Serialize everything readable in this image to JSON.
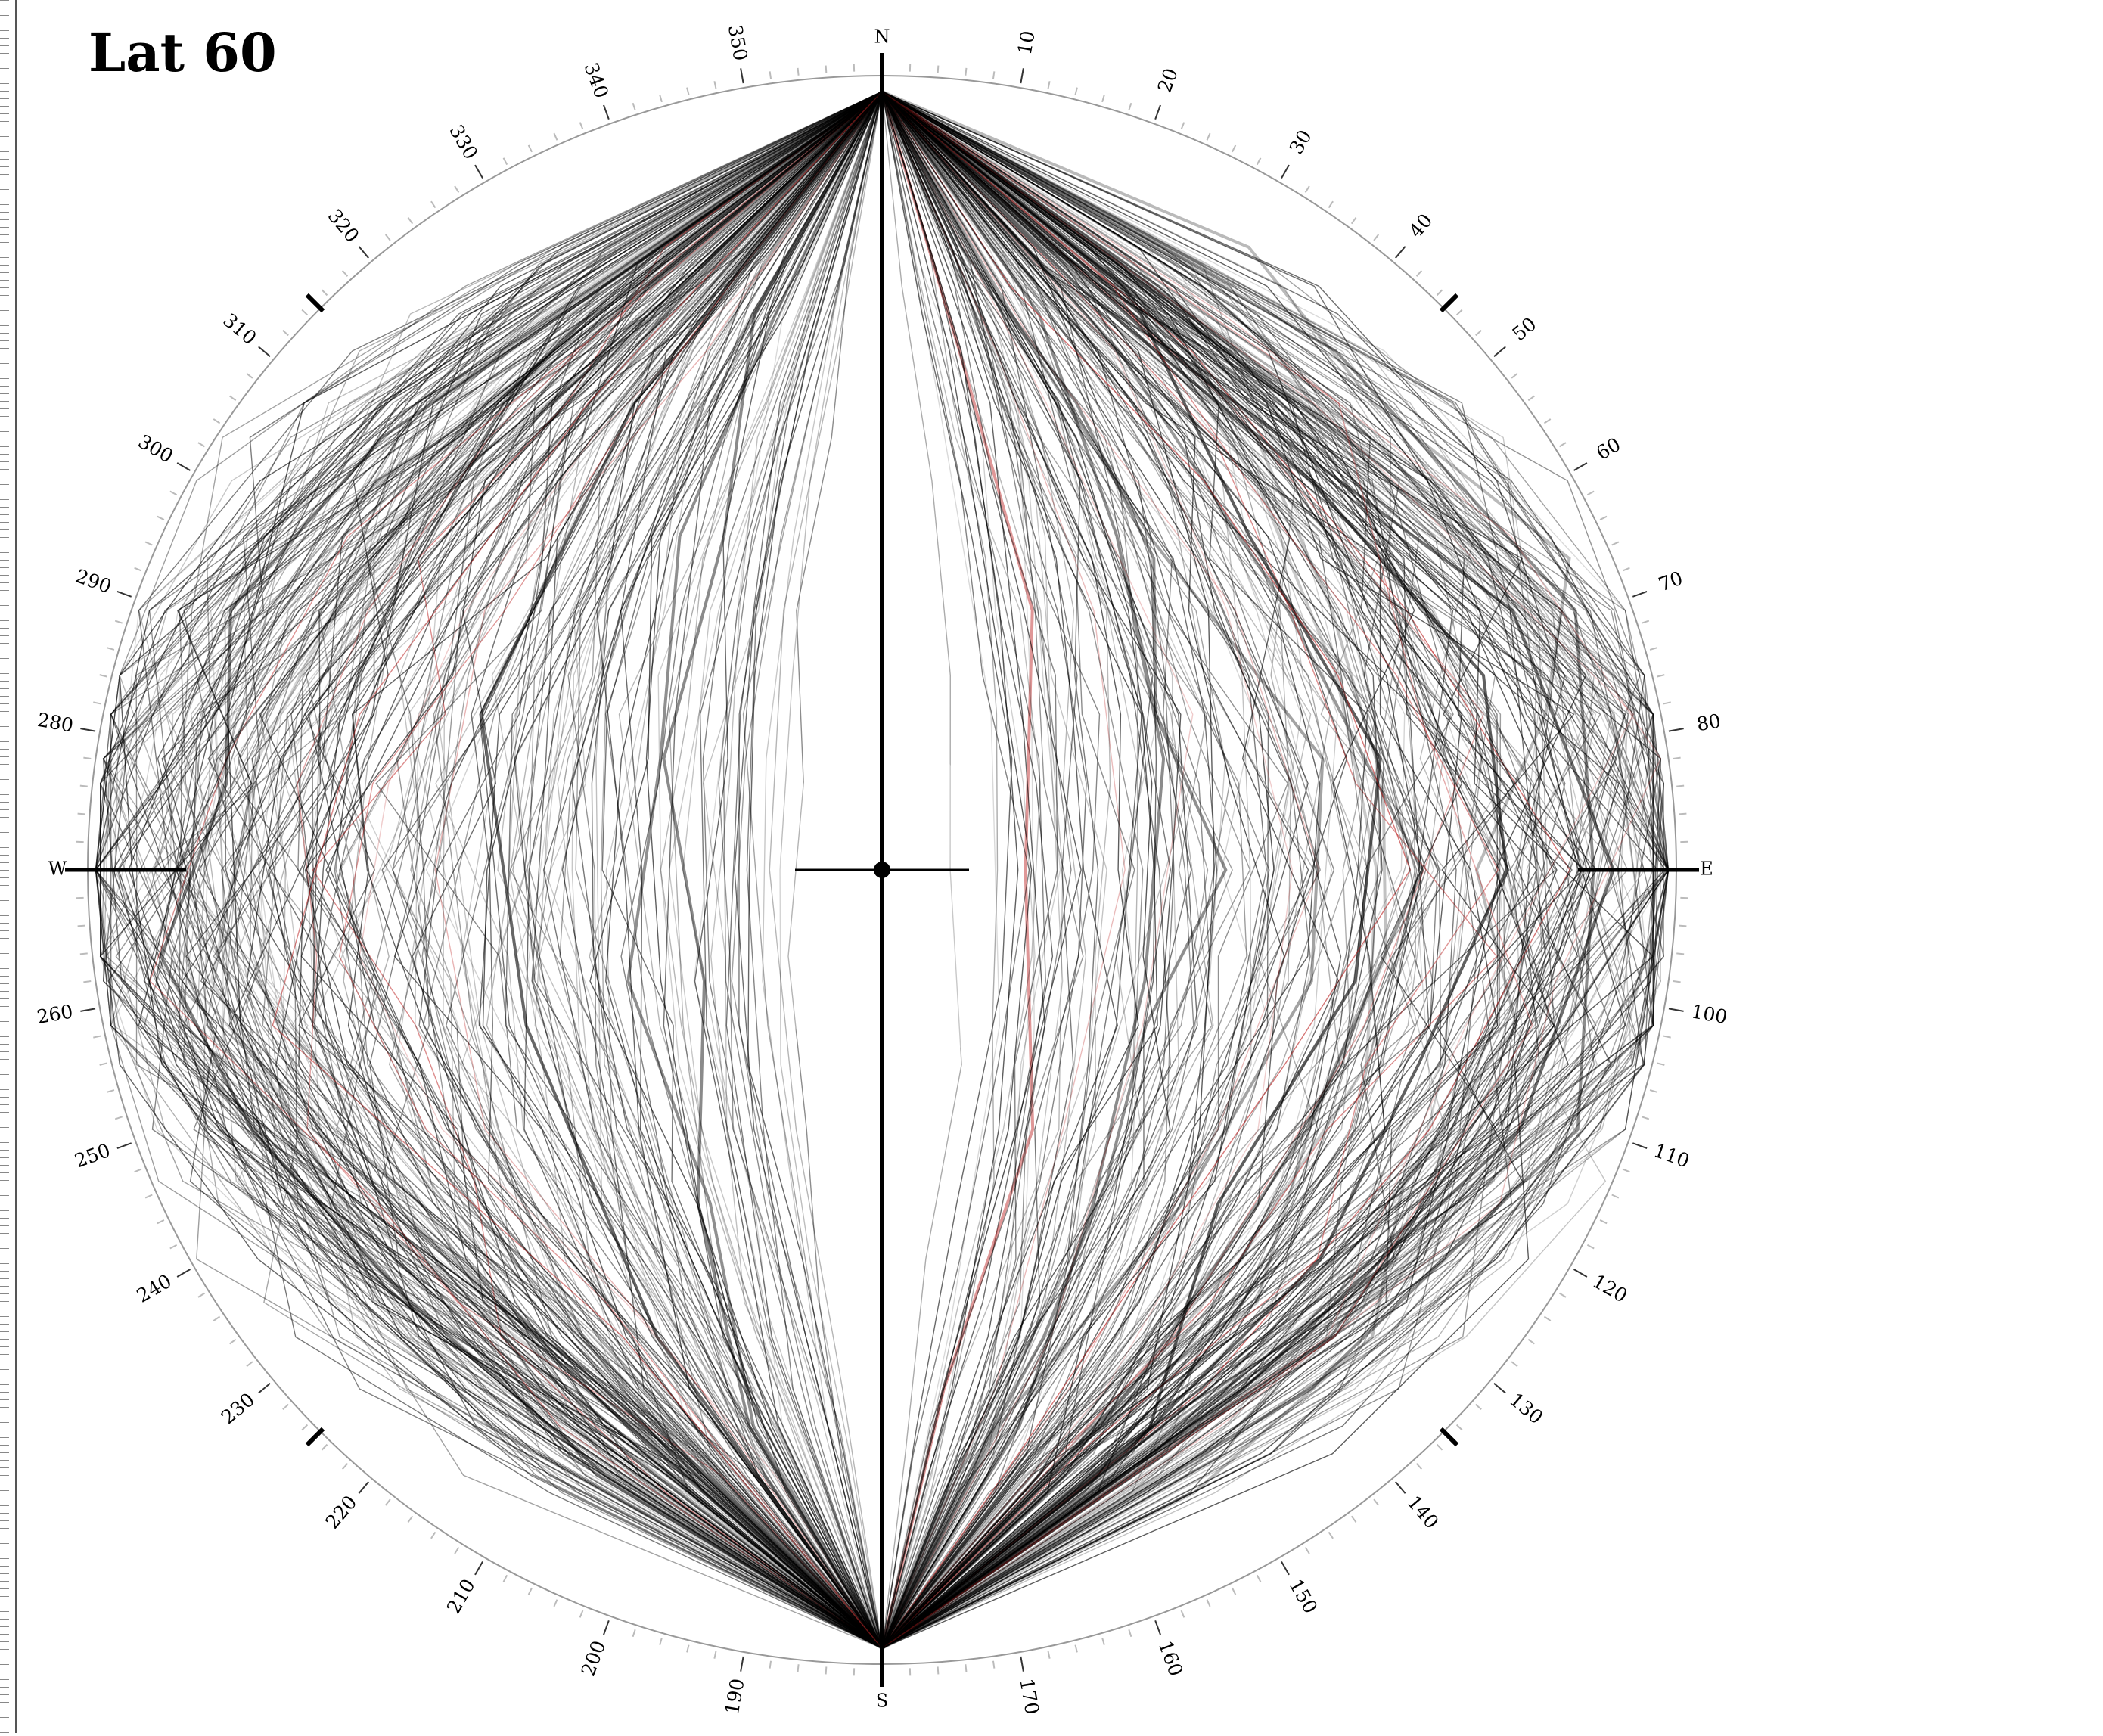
{
  "title": "Lat 60",
  "cardinals": {
    "north": "N",
    "east": "E",
    "south": "S",
    "west": "W"
  },
  "bearings": [
    10,
    20,
    30,
    40,
    50,
    60,
    70,
    80,
    100,
    110,
    120,
    130,
    140,
    150,
    160,
    170,
    190,
    200,
    210,
    220,
    230,
    240,
    250,
    260,
    280,
    290,
    300,
    310,
    320,
    330,
    340,
    350
  ]
}
